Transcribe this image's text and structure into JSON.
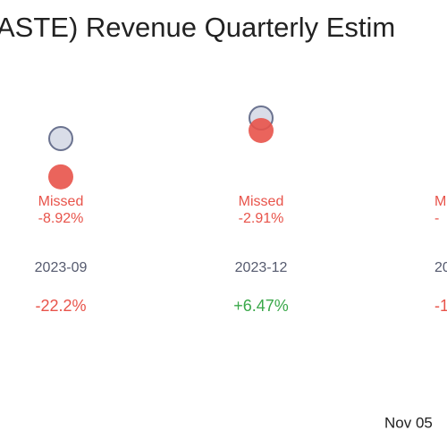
{
  "chart_data": {
    "type": "dot",
    "title": "ASTE) Revenue Quarterly Estim",
    "categories": [
      "2023-09",
      "2023-12",
      "20"
    ],
    "status": [
      "Missed",
      "Missed",
      "Mi"
    ],
    "values": [
      -8.92,
      -2.91,
      null
    ],
    "value_labels": [
      "-8.92%",
      "-2.91%",
      "-"
    ],
    "yoy_values": [
      -22.2,
      6.47,
      null
    ],
    "yoy_labels": [
      "-22.2%",
      "+6.47%",
      "-1"
    ],
    "footer": "Nov 05",
    "estimate_color": "#d9dde8",
    "actual_color": "#e8534a",
    "negative_color": "#e8534a",
    "positive_color": "#3aa84a"
  }
}
